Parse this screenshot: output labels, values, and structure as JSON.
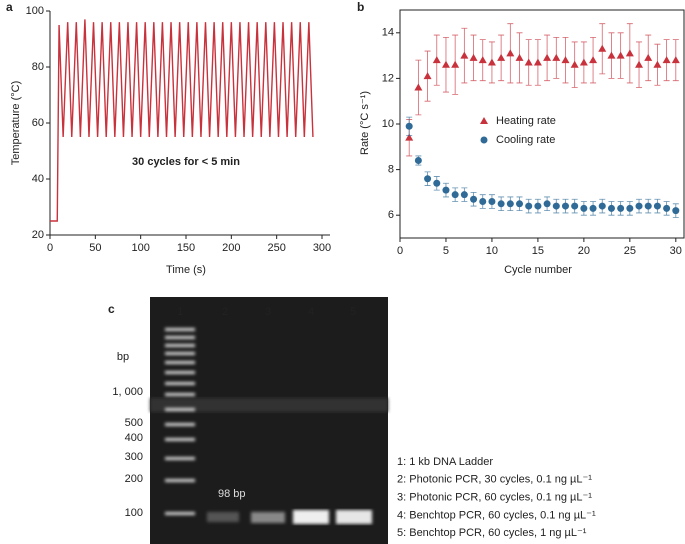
{
  "chart_data": [
    {
      "type": "line",
      "panel": "a",
      "xlabel": "Time (s)",
      "ylabel": "Temperature (°C)",
      "annotation": "30 cycles for < 5 min",
      "x": [
        0,
        8,
        10,
        14.5,
        19.5,
        24,
        29,
        33.5,
        38.5,
        43,
        48,
        52.5,
        57.5,
        62,
        67,
        71.5,
        76.5,
        81,
        86,
        90.5,
        95.5,
        100,
        105,
        109.5,
        114.5,
        119,
        124,
        128.5,
        133.5,
        138,
        143,
        147.5,
        152.5,
        157,
        162,
        166.5,
        171.5,
        176,
        181,
        185.5,
        190.5,
        195,
        200,
        204.5,
        209.5,
        214,
        219,
        223.5,
        228.5,
        233,
        238,
        242.5,
        247.5,
        252,
        257,
        261.5,
        266.5,
        271,
        276,
        280.5,
        285.5,
        290
      ],
      "series": [
        {
          "name": "Temperature",
          "color": "#c8323c",
          "values": [
            25,
            25,
            95,
            55,
            96,
            55,
            96,
            55,
            97,
            55,
            96,
            55,
            96,
            55,
            96,
            55,
            96,
            55,
            96,
            55,
            96,
            55,
            96,
            55,
            96,
            55,
            96,
            55,
            96,
            55,
            96,
            55,
            96,
            55,
            96,
            55,
            96,
            55,
            96,
            55,
            96,
            55,
            96,
            55,
            96,
            55,
            96,
            55,
            96,
            55,
            96,
            55,
            96,
            55,
            96,
            55,
            96,
            55,
            96,
            55,
            96,
            55
          ]
        }
      ],
      "xlim": [
        0,
        300
      ],
      "xticks": [
        0,
        50,
        100,
        150,
        200,
        250,
        300
      ],
      "ylim": [
        20,
        100
      ],
      "yticks": [
        20,
        40,
        60,
        80,
        100
      ]
    },
    {
      "type": "scatter",
      "panel": "b",
      "xlabel": "Cycle number",
      "ylabel": "Rate (°C s⁻¹)",
      "x": [
        1,
        2,
        3,
        4,
        5,
        6,
        7,
        8,
        9,
        10,
        11,
        12,
        13,
        14,
        15,
        16,
        17,
        18,
        19,
        20,
        21,
        22,
        23,
        24,
        25,
        26,
        27,
        28,
        29,
        30
      ],
      "series": [
        {
          "name": "Heating rate",
          "color": "#c8323c",
          "marker": "triangle",
          "values": [
            9.4,
            11.6,
            12.1,
            12.8,
            12.6,
            12.6,
            13.0,
            12.9,
            12.8,
            12.7,
            12.9,
            13.1,
            12.9,
            12.7,
            12.7,
            12.9,
            12.9,
            12.8,
            12.6,
            12.7,
            12.8,
            13.3,
            13.0,
            13.0,
            13.1,
            12.6,
            12.9,
            12.6,
            12.8,
            12.8
          ],
          "errors": [
            0.8,
            1.2,
            1.1,
            1.1,
            1.2,
            1.3,
            1.2,
            1.0,
            0.9,
            0.9,
            1.0,
            1.3,
            1.1,
            1.0,
            1.0,
            1.0,
            0.9,
            1.0,
            1.0,
            0.9,
            1.0,
            1.1,
            1.0,
            1.0,
            1.3,
            1.0,
            1.0,
            0.9,
            0.9,
            0.9
          ]
        },
        {
          "name": "Cooling rate",
          "color": "#2f6b96",
          "marker": "circle",
          "values": [
            9.9,
            8.4,
            7.6,
            7.4,
            7.1,
            6.9,
            6.9,
            6.7,
            6.6,
            6.6,
            6.5,
            6.5,
            6.5,
            6.4,
            6.4,
            6.5,
            6.4,
            6.4,
            6.4,
            6.3,
            6.3,
            6.4,
            6.3,
            6.3,
            6.3,
            6.4,
            6.4,
            6.4,
            6.3,
            6.2
          ],
          "errors": [
            0.4,
            0.2,
            0.3,
            0.3,
            0.3,
            0.3,
            0.3,
            0.3,
            0.3,
            0.3,
            0.3,
            0.3,
            0.3,
            0.3,
            0.3,
            0.3,
            0.3,
            0.3,
            0.3,
            0.3,
            0.3,
            0.3,
            0.3,
            0.3,
            0.3,
            0.3,
            0.3,
            0.3,
            0.3,
            0.3
          ]
        }
      ],
      "xlim": [
        0,
        31
      ],
      "xticks": [
        0,
        5,
        10,
        15,
        20,
        25,
        30
      ],
      "ylim": [
        5,
        15
      ],
      "yticks": [
        6,
        8,
        10,
        12,
        14
      ]
    }
  ],
  "gel": {
    "panel": "c",
    "lanes": [
      "1",
      "2",
      "3",
      "4",
      "5"
    ],
    "unit": "bp",
    "sizes": [
      "1, 000",
      "500",
      "400",
      "300",
      "200",
      "100"
    ],
    "band_label": "98 bp",
    "legend": [
      "1: 1 kb DNA Ladder",
      "2: Photonic PCR, 30 cycles, 0.1 ng µL⁻¹",
      "3: Photonic PCR, 60 cycles, 0.1 ng µL⁻¹",
      "4: Benchtop PCR, 60 cycles, 0.1 ng µL⁻¹",
      "5: Benchtop PCR, 60 cycles, 1 ng µL⁻¹"
    ]
  }
}
